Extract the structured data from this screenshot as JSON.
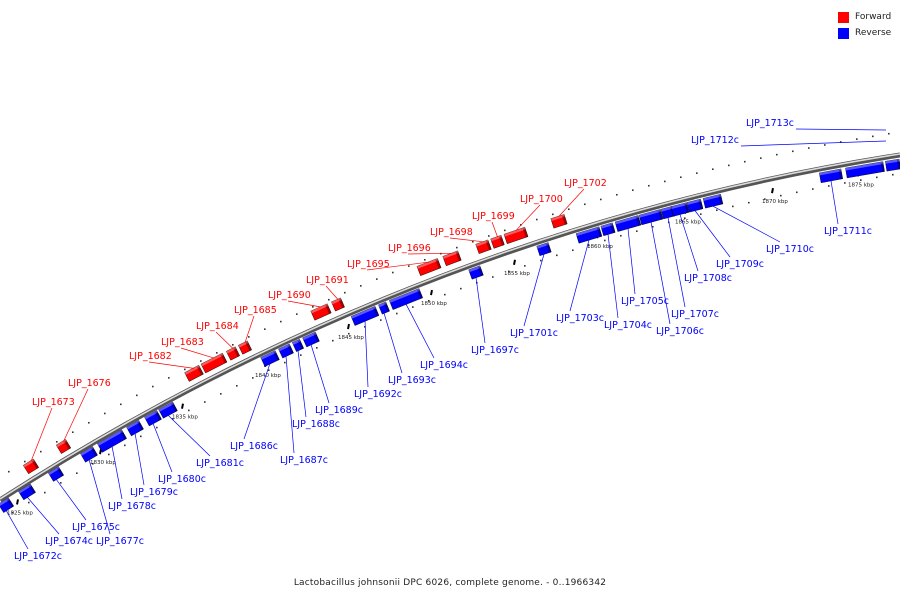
{
  "caption": "Lactobacillus johnsonii DPC 6026, complete genome. - 0..1966342",
  "legend": {
    "forward": {
      "label": "Forward",
      "color": "#ff0000"
    },
    "reverse": {
      "label": "Reverse",
      "color": "#0000ff"
    }
  },
  "kbp_labels": [
    "1825 kbp",
    "1830 kbp",
    "1835 kbp",
    "1840 kbp",
    "1845 kbp",
    "1850 kbp",
    "1855 kbp",
    "1860 kbp",
    "1865 kbp",
    "1870 kbp",
    "1875 kbp"
  ],
  "forward_genes": [
    {
      "label": "LJP_1673"
    },
    {
      "label": "LJP_1676"
    },
    {
      "label": "LJP_1682"
    },
    {
      "label": "LJP_1683"
    },
    {
      "label": "LJP_1684"
    },
    {
      "label": "LJP_1685"
    },
    {
      "label": "LJP_1690"
    },
    {
      "label": "LJP_1691"
    },
    {
      "label": "LJP_1695"
    },
    {
      "label": "LJP_1696"
    },
    {
      "label": "LJP_1698"
    },
    {
      "label": "LJP_1699"
    },
    {
      "label": "LJP_1700"
    },
    {
      "label": "LJP_1702"
    }
  ],
  "reverse_genes": [
    {
      "label": "LJP_1672c"
    },
    {
      "label": "LJP_1674c"
    },
    {
      "label": "LJP_1675c"
    },
    {
      "label": "LJP_1677c"
    },
    {
      "label": "LJP_1678c"
    },
    {
      "label": "LJP_1679c"
    },
    {
      "label": "LJP_1680c"
    },
    {
      "label": "LJP_1681c"
    },
    {
      "label": "LJP_1686c"
    },
    {
      "label": "LJP_1687c"
    },
    {
      "label": "LJP_1688c"
    },
    {
      "label": "LJP_1689c"
    },
    {
      "label": "LJP_1692c"
    },
    {
      "label": "LJP_1693c"
    },
    {
      "label": "LJP_1694c"
    },
    {
      "label": "LJP_1697c"
    },
    {
      "label": "LJP_1701c"
    },
    {
      "label": "LJP_1703c"
    },
    {
      "label": "LJP_1704c"
    },
    {
      "label": "LJP_1705c"
    },
    {
      "label": "LJP_1706c"
    },
    {
      "label": "LJP_1707c"
    },
    {
      "label": "LJP_1708c"
    },
    {
      "label": "LJP_1709c"
    },
    {
      "label": "LJP_1710c"
    },
    {
      "label": "LJP_1711c"
    },
    {
      "label": "LJP_1712c"
    },
    {
      "label": "LJP_1713c"
    }
  ]
}
